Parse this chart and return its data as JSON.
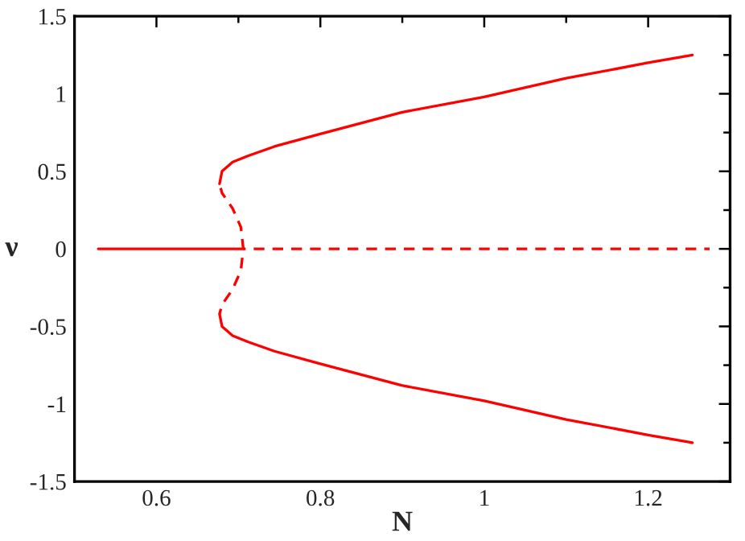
{
  "chart_data": {
    "type": "line",
    "xlabel": "N",
    "ylabel": "ν",
    "xlim": [
      0.5,
      1.3
    ],
    "ylim": [
      -1.5,
      1.5
    ],
    "xticks": [
      0.6,
      0.8,
      1,
      1.2
    ],
    "yticks": [
      {
        "value": -1.5,
        "label": "-1.5"
      },
      {
        "value": -1,
        "label": "-1"
      },
      {
        "value": -0.5,
        "label": "-0.5"
      },
      0,
      0.5,
      1,
      1.5
    ],
    "grid": false,
    "legend": false,
    "marker": "none",
    "series": [
      {
        "color": "#ff0000",
        "line_style": "solid",
        "x": [
          0.529,
          0.706
        ],
        "values": [
          0,
          0
        ]
      },
      {
        "color": "#ff0000",
        "line_style": "dashed",
        "x": [
          0.706,
          1.275
        ],
        "values": [
          0,
          0
        ]
      },
      {
        "color": "#ff0000",
        "line_style": "dashed",
        "x": [
          0.677,
          0.68,
          0.693,
          0.703,
          0.706,
          0.703,
          0.693,
          0.68,
          0.677
        ],
        "values": [
          0.42,
          0.36,
          0.26,
          0.14,
          0,
          -0.14,
          -0.26,
          -0.36,
          -0.42
        ]
      },
      {
        "color": "#ff0000",
        "line_style": "solid",
        "x": [
          0.677,
          0.68,
          0.693,
          0.712,
          0.744,
          0.799,
          0.899,
          1.0,
          1.1,
          1.2,
          1.254
        ],
        "values": [
          0.42,
          0.5,
          0.56,
          0.6,
          0.66,
          0.74,
          0.88,
          0.98,
          1.1,
          1.2,
          1.25
        ]
      },
      {
        "color": "#ff0000",
        "line_style": "solid",
        "x": [
          0.677,
          0.68,
          0.693,
          0.712,
          0.744,
          0.799,
          0.899,
          1.0,
          1.1,
          1.2,
          1.254
        ],
        "values": [
          -0.42,
          -0.5,
          -0.56,
          -0.6,
          -0.66,
          -0.74,
          -0.88,
          -0.98,
          -1.1,
          -1.2,
          -1.25
        ]
      }
    ]
  }
}
